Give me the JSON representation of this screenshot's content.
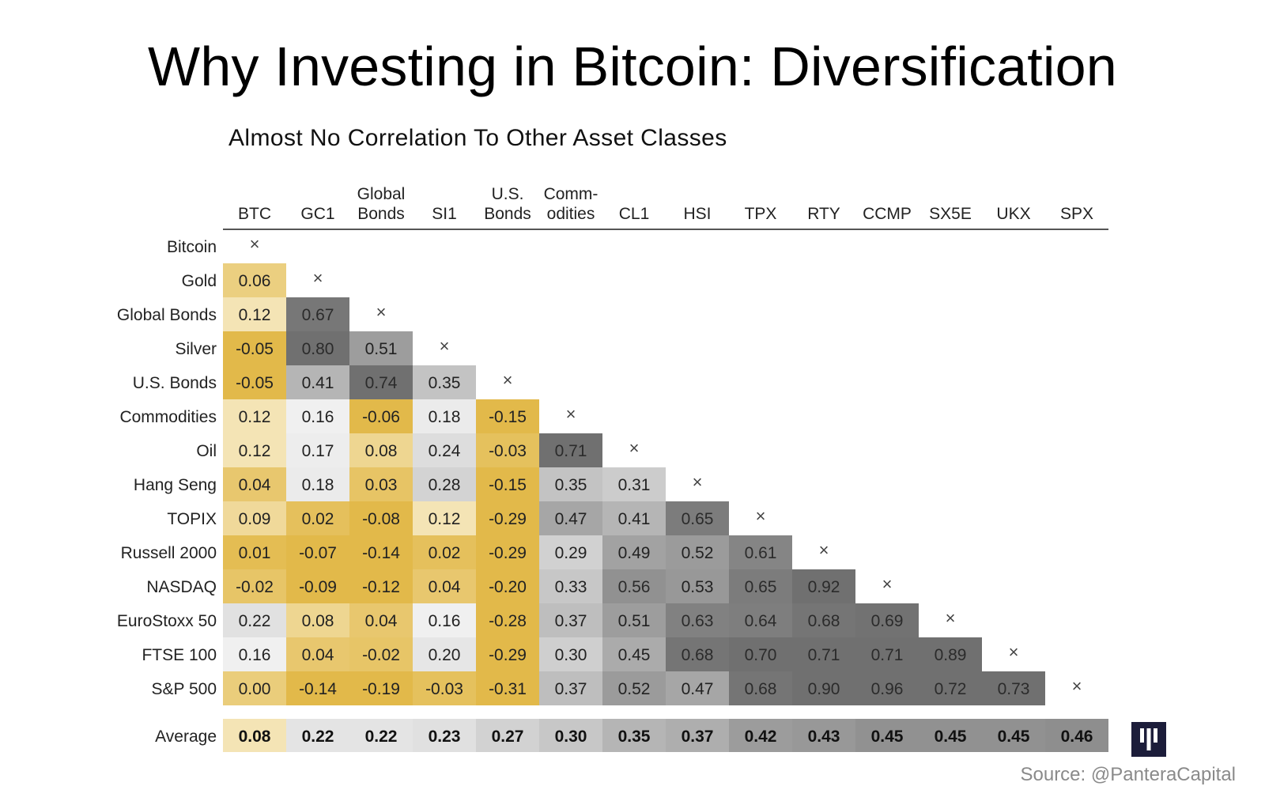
{
  "title": "Why Investing in Bitcoin: Diversification",
  "source": "Source: @PanteraCapital",
  "chart_data": {
    "type": "heatmap",
    "title": "Almost No Correlation To Other Asset Classes",
    "columns": [
      {
        "line1": "",
        "line2": "BTC"
      },
      {
        "line1": "",
        "line2": "GC1"
      },
      {
        "line1": "Global",
        "line2": "Bonds"
      },
      {
        "line1": "",
        "line2": "SI1"
      },
      {
        "line1": "U.S.",
        "line2": "Bonds"
      },
      {
        "line1": "Comm-",
        "line2": "odities"
      },
      {
        "line1": "",
        "line2": "CL1"
      },
      {
        "line1": "",
        "line2": "HSI"
      },
      {
        "line1": "",
        "line2": "TPX"
      },
      {
        "line1": "",
        "line2": "RTY"
      },
      {
        "line1": "",
        "line2": "CCMP"
      },
      {
        "line1": "",
        "line2": "SX5E"
      },
      {
        "line1": "",
        "line2": "UKX"
      },
      {
        "line1": "",
        "line2": "SPX"
      }
    ],
    "rows": [
      "Bitcoin",
      "Gold",
      "Global Bonds",
      "Silver",
      "U.S. Bonds",
      "Commodities",
      "Oil",
      "Hang Seng",
      "TOPIX",
      "Russell 2000",
      "NASDAQ",
      "EuroStoxx 50",
      "FTSE 100",
      "S&P 500"
    ],
    "diagonal_marker": "×",
    "values": [
      [],
      [
        "0.06"
      ],
      [
        "0.12",
        "0.67"
      ],
      [
        "-0.05",
        "0.80",
        "0.51"
      ],
      [
        "-0.05",
        "0.41",
        "0.74",
        "0.35"
      ],
      [
        "0.12",
        "0.16",
        "-0.06",
        "0.18",
        "-0.15"
      ],
      [
        "0.12",
        "0.17",
        "0.08",
        "0.24",
        "-0.03",
        "0.71"
      ],
      [
        "0.04",
        "0.18",
        "0.03",
        "0.28",
        "-0.15",
        "0.35",
        "0.31"
      ],
      [
        "0.09",
        "0.02",
        "-0.08",
        "0.12",
        "-0.29",
        "0.47",
        "0.41",
        "0.65"
      ],
      [
        "0.01",
        "-0.07",
        "-0.14",
        "0.02",
        "-0.29",
        "0.29",
        "0.49",
        "0.52",
        "0.61"
      ],
      [
        "-0.02",
        "-0.09",
        "-0.12",
        "0.04",
        "-0.20",
        "0.33",
        "0.56",
        "0.53",
        "0.65",
        "0.92"
      ],
      [
        "0.22",
        "0.08",
        "0.04",
        "0.16",
        "-0.28",
        "0.37",
        "0.51",
        "0.63",
        "0.64",
        "0.68",
        "0.69"
      ],
      [
        "0.16",
        "0.04",
        "-0.02",
        "0.20",
        "-0.29",
        "0.30",
        "0.45",
        "0.68",
        "0.70",
        "0.71",
        "0.71",
        "0.89"
      ],
      [
        "0.00",
        "-0.14",
        "-0.19",
        "-0.03",
        "-0.31",
        "0.37",
        "0.52",
        "0.47",
        "0.68",
        "0.90",
        "0.96",
        "0.72",
        "0.73"
      ]
    ],
    "average_label": "Average",
    "averages": [
      "0.08",
      "0.22",
      "0.22",
      "0.23",
      "0.27",
      "0.30",
      "0.35",
      "0.37",
      "0.42",
      "0.43",
      "0.45",
      "0.45",
      "0.45",
      "0.46"
    ],
    "color_scale": {
      "negative_low": "#e2b94a",
      "positive_low": "#f4e4b5",
      "neutral": "#f2f2f2",
      "high": "#707070"
    }
  }
}
